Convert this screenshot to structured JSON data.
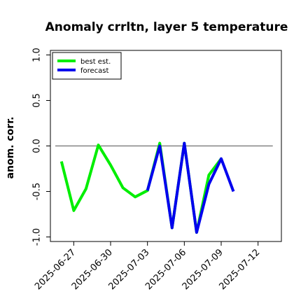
{
  "chart_data": {
    "type": "line",
    "title": "Anomaly crrltn, layer 5 temperature",
    "ylabel": "anom. corr.",
    "xlabel": "",
    "ylim": [
      -1.05,
      1.05
    ],
    "yticks": [
      -1.0,
      -0.5,
      0.0,
      0.5,
      1.0
    ],
    "ytick_labels": [
      "-1.0",
      "-0.5",
      "0.0",
      "0.5",
      "1.0"
    ],
    "xticks": [
      {
        "label": "2025-06-27",
        "color": "#000000",
        "x": 1
      },
      {
        "label": "2025-06-30",
        "color": "#000000",
        "x": 4
      },
      {
        "label": "2025-07-03",
        "color": "#2e8b2e",
        "x": 7
      },
      {
        "label": "2025-07-06",
        "color": "#000000",
        "x": 10
      },
      {
        "label": "2025-07-09",
        "color": "#000000",
        "x": 13
      },
      {
        "label": "2025-07-12",
        "color": "#000000",
        "x": 16
      }
    ],
    "xlim": [
      -0.9,
      17.9
    ],
    "reference_line": 0.0,
    "series": [
      {
        "name": "best est.",
        "color": "#00ee00",
        "x": [
          0,
          1,
          2,
          3,
          4,
          5,
          6,
          7,
          8,
          9,
          10,
          11,
          12,
          13
        ],
        "y": [
          -0.17,
          -0.71,
          -0.47,
          0.01,
          -0.21,
          -0.46,
          -0.56,
          -0.49,
          0.03,
          -0.9,
          0.03,
          -0.95,
          -0.32,
          -0.14
        ]
      },
      {
        "name": "forecast",
        "color": "#0000ee",
        "x": [
          7,
          8,
          9,
          10,
          11,
          12,
          13,
          14
        ],
        "y": [
          -0.49,
          0.0,
          -0.9,
          0.03,
          -0.95,
          -0.42,
          -0.14,
          -0.5
        ]
      }
    ],
    "legend_position": "top-left",
    "grid": false
  }
}
